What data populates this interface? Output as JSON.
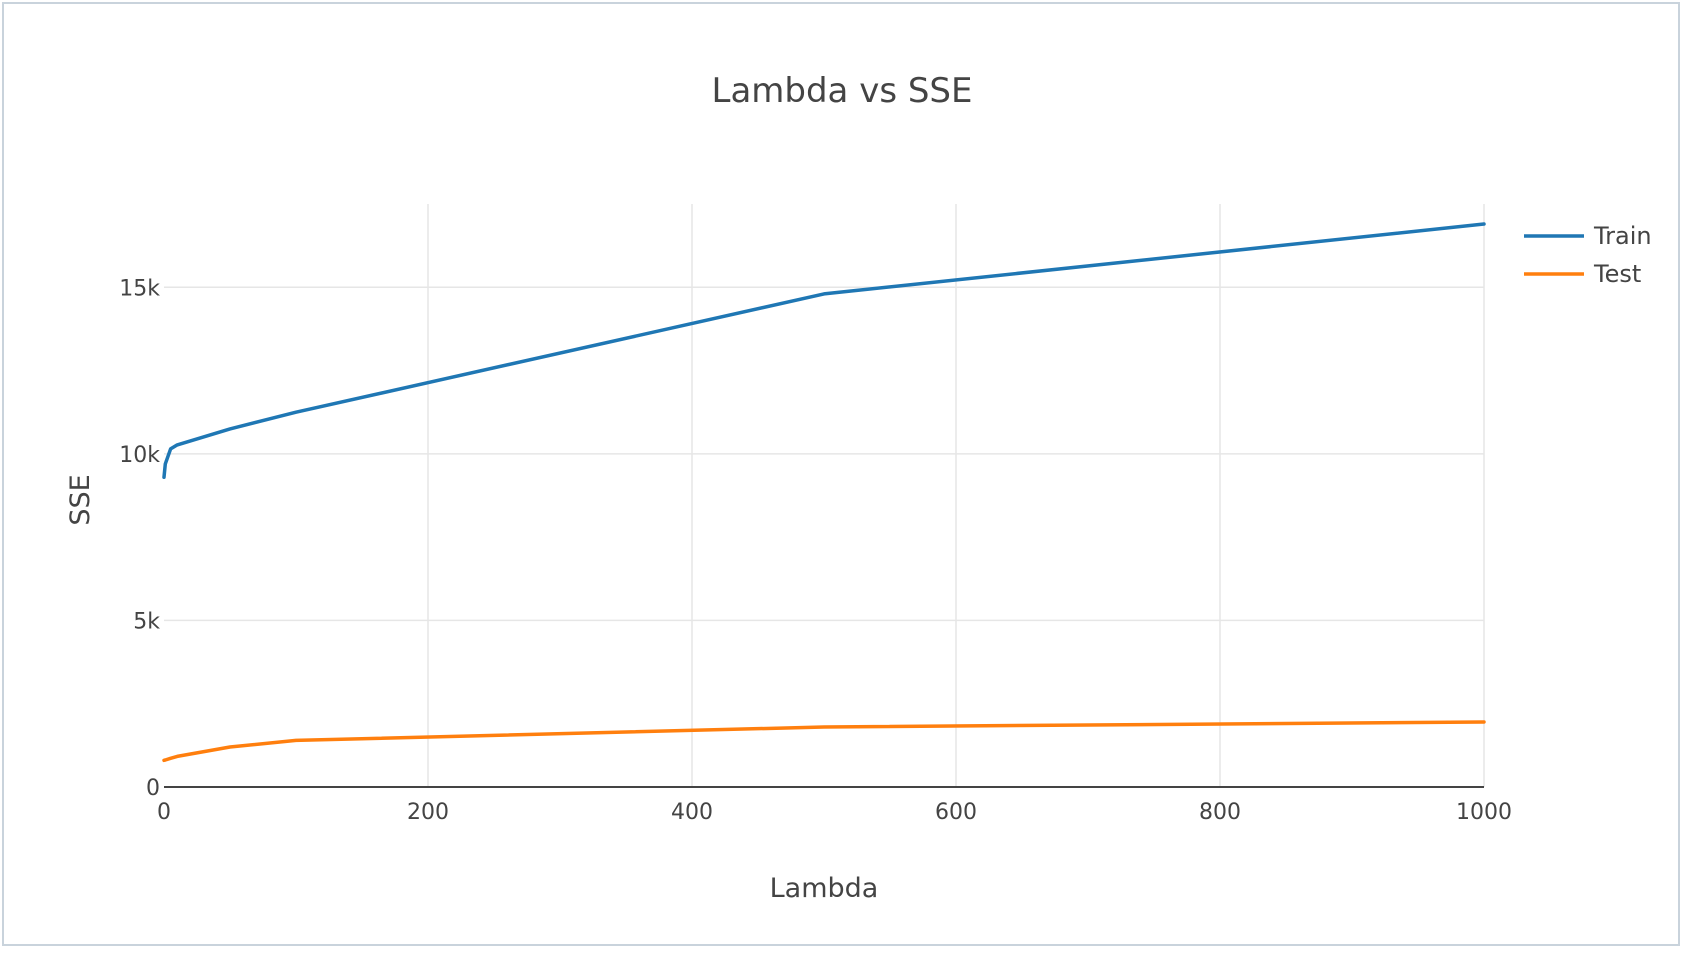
{
  "chart_data": {
    "type": "line",
    "title": "Lambda vs SSE",
    "xlabel": "Lambda",
    "ylabel": "SSE",
    "xlim": [
      0,
      1000
    ],
    "ylim": [
      0,
      17500
    ],
    "x_ticks": [
      0,
      200,
      400,
      600,
      800,
      1000
    ],
    "x_tick_labels": [
      "0",
      "200",
      "400",
      "600",
      "800",
      "1000"
    ],
    "y_ticks": [
      0,
      5000,
      10000,
      15000
    ],
    "y_tick_labels": [
      "0",
      "5k",
      "10k",
      "15k"
    ],
    "grid": true,
    "legend_position": "top-right",
    "series": [
      {
        "name": "Train",
        "color": "#1f77b4",
        "x": [
          0,
          1,
          5,
          10,
          50,
          100,
          500,
          1000
        ],
        "y": [
          9300,
          9700,
          10150,
          10270,
          10750,
          11250,
          14800,
          16900
        ]
      },
      {
        "name": "Test",
        "color": "#ff7f0e",
        "x": [
          0,
          1,
          5,
          10,
          50,
          100,
          500,
          1000
        ],
        "y": [
          800,
          810,
          860,
          920,
          1200,
          1400,
          1800,
          1950
        ]
      }
    ]
  }
}
